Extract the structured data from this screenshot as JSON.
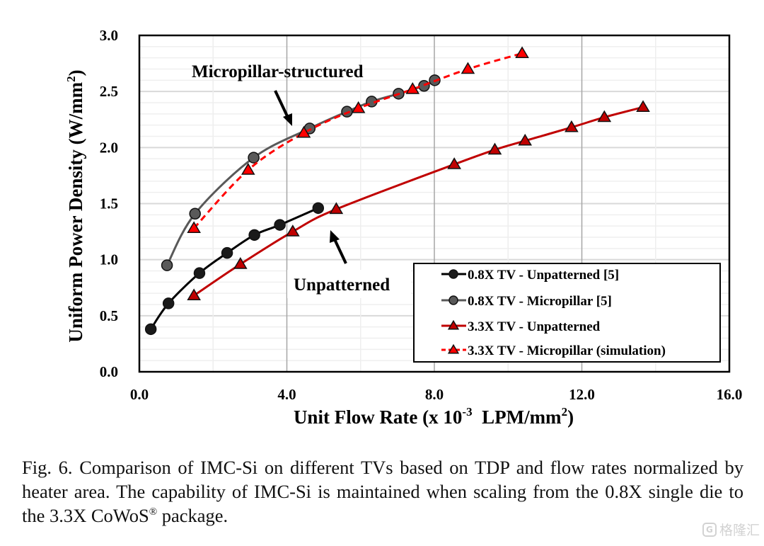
{
  "chart_data": {
    "type": "line",
    "title": "",
    "xlabel": "Unit Flow Rate (x 10^-3 LPM/mm^2)",
    "xlabel_parts": {
      "main": "Unit Flow Rate (x 10",
      "sup1": "-3",
      "mid": "  LPM/mm",
      "sup2": "2",
      "end": ")"
    },
    "ylabel": "Uniform Power Density (W/mm^2)",
    "ylabel_parts": {
      "main": "Uniform Power Density (W/mm",
      "sup": "2",
      "end": ")"
    },
    "xlim": [
      0,
      16
    ],
    "ylim": [
      0,
      3.0
    ],
    "x_ticks": [
      0,
      4,
      8,
      12,
      16
    ],
    "x_tick_labels": [
      "0.0",
      "4.0",
      "8.0",
      "12.0",
      "16.0"
    ],
    "y_ticks": [
      0,
      0.5,
      1.0,
      1.5,
      2.0,
      2.5,
      3.0
    ],
    "y_tick_labels": [
      "0.0",
      "0.5",
      "1.0",
      "1.5",
      "2.0",
      "2.5",
      "3.0"
    ],
    "grid": {
      "major": true,
      "minor": true,
      "x_minor_step": 2,
      "y_minor_step": 0.1
    },
    "legend_position": "bottom-right",
    "series": [
      {
        "name": "0.8X TV - Unpatterned [5]",
        "marker": "circle",
        "line": "solid",
        "color": "#000000",
        "marker_fill": "#1a1a1a",
        "x": [
          0.31,
          0.79,
          1.63,
          2.38,
          3.12,
          3.81,
          4.85
        ],
        "y": [
          0.38,
          0.61,
          0.88,
          1.06,
          1.22,
          1.31,
          1.46
        ]
      },
      {
        "name": "0.8X TV - Micropillar [5]",
        "marker": "circle",
        "line": "solid",
        "color": "#595959",
        "marker_fill": "#595959",
        "x": [
          0.75,
          1.51,
          3.1,
          4.62,
          5.63,
          6.3,
          7.03,
          7.72,
          8.01
        ],
        "y": [
          0.95,
          1.41,
          1.91,
          2.17,
          2.32,
          2.41,
          2.48,
          2.55,
          2.6
        ]
      },
      {
        "name": "3.3X TV - Unpatterned",
        "marker": "triangle",
        "line": "solid",
        "color": "#c00000",
        "marker_fill": "#c00000",
        "x": [
          1.48,
          2.74,
          4.16,
          5.34,
          8.54,
          9.64,
          10.46,
          11.72,
          12.61,
          13.66
        ],
        "y": [
          0.68,
          0.96,
          1.25,
          1.45,
          1.85,
          1.98,
          2.06,
          2.18,
          2.27,
          2.36
        ]
      },
      {
        "name": "3.3X TV - Micropillar (simulation)",
        "marker": "triangle",
        "line": "dashed",
        "color": "#ff0000",
        "marker_fill": "#ff0000",
        "x": [
          1.48,
          2.95,
          4.46,
          5.94,
          7.41,
          8.91,
          10.38
        ],
        "y": [
          1.28,
          1.8,
          2.13,
          2.35,
          2.52,
          2.7,
          2.84
        ]
      }
    ],
    "annotations": [
      {
        "text": "Micropillar-structured",
        "points_to": "micropillar curves near x=4.3"
      },
      {
        "text": "Unpatterned",
        "points_to": "unpatterned curves near x=5.2"
      }
    ]
  },
  "caption": {
    "prefix": "Fig. 6. Comparison of IMC-Si on different TVs based on TDP and flow rates normalized by heater area. The capability of IMC-Si is maintained when scaling from the 0.8X single die to the 3.3X CoWoS",
    "sup": "®",
    "suffix": " package."
  },
  "watermark": {
    "logo": "G",
    "text": "格隆汇"
  }
}
